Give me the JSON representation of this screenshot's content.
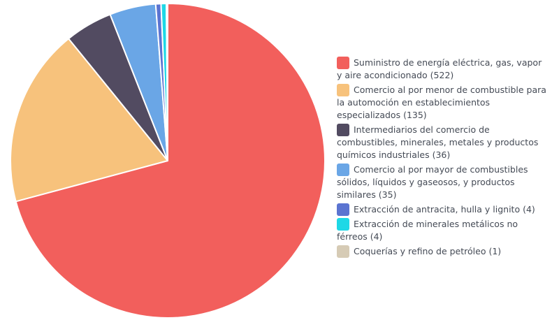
{
  "chart_data": {
    "type": "pie",
    "title": "",
    "start_angle_deg": 0,
    "slices": [
      {
        "label": "Suministro de energía eléctrica, gas, vapor y aire acondicionado (522)",
        "value": 522,
        "color": "#f25f5c"
      },
      {
        "label": "Comercio al por menor de combustible para la automoción en establecimientos especializados (135)",
        "value": 135,
        "color": "#f7c27c"
      },
      {
        "label": "Intermediarios del comercio de combustibles, minerales, metales y productos químicos industriales (36)",
        "value": 36,
        "color": "#524b61"
      },
      {
        "label": "Comercio al por mayor de combustibles sólidos, líquidos y gaseosos, y productos similares (35)",
        "value": 35,
        "color": "#6aa6e6"
      },
      {
        "label": "Extracción de antracita, hulla y lignito (4)",
        "value": 4,
        "color": "#5b74d1"
      },
      {
        "label": "Extracción de minerales metálicos no férreos (4)",
        "value": 4,
        "color": "#1ed8e6"
      },
      {
        "label": "Coquerías y refino de petróleo (1)",
        "value": 1,
        "color": "#d6cbb5"
      }
    ],
    "legend_position": "right"
  }
}
